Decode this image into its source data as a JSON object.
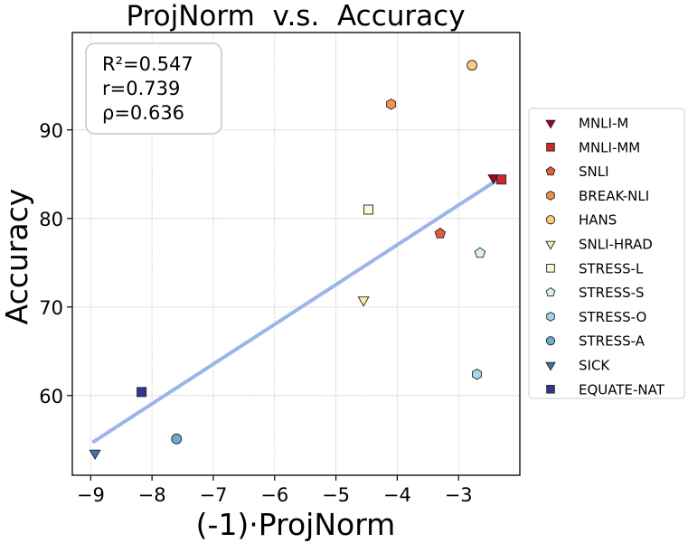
{
  "chart_data": {
    "type": "scatter",
    "title": "ProjNorm  v.s.  Accuracy",
    "xlabel": "(-1)·ProjNorm",
    "ylabel": "Accuracy",
    "xlim": [
      -9.3,
      -2.0
    ],
    "ylim": [
      51.0,
      101.0
    ],
    "xticks": [
      -9,
      -8,
      -7,
      -6,
      -5,
      -4,
      -3
    ],
    "yticks": [
      60,
      70,
      80,
      90
    ],
    "xtick_labels": [
      "−9",
      "−8",
      "−7",
      "−6",
      "−5",
      "−4",
      "−3"
    ],
    "ytick_labels": [
      "60",
      "70",
      "80",
      "90"
    ],
    "grid": true,
    "legend_position": "right outside",
    "stats": [
      "R²=0.547",
      "r=0.739",
      "ρ=0.636"
    ],
    "fit_line": {
      "x": [
        -8.95,
        -2.4
      ],
      "y": [
        54.8,
        84.2
      ],
      "color": "#9db4ea"
    },
    "series": [
      {
        "name": "MNLI-M",
        "marker": "triangle-down",
        "color": "#99081e",
        "x": [
          -2.43
        ],
        "y": [
          84.6
        ]
      },
      {
        "name": "MNLI-MM",
        "marker": "square",
        "color": "#d0282c",
        "x": [
          -2.3
        ],
        "y": [
          84.4
        ]
      },
      {
        "name": "SNLI",
        "marker": "pentagon",
        "color": "#ea5838",
        "x": [
          -3.3
        ],
        "y": [
          78.3
        ]
      },
      {
        "name": "BREAK-NLI",
        "marker": "hexagon",
        "color": "#f5904d",
        "x": [
          -4.1
        ],
        "y": [
          92.9
        ]
      },
      {
        "name": "HANS",
        "marker": "circle",
        "color": "#fdc979",
        "x": [
          -2.78
        ],
        "y": [
          97.3
        ]
      },
      {
        "name": "SNLI-HRAD",
        "marker": "triangle-down",
        "color": "#fdf0a2",
        "x": [
          -4.55
        ],
        "y": [
          70.8
        ]
      },
      {
        "name": "STRESS-L",
        "marker": "square",
        "color": "#f9fbd4",
        "x": [
          -4.47
        ],
        "y": [
          81.0
        ]
      },
      {
        "name": "STRESS-S",
        "marker": "pentagon",
        "color": "#daf0f5",
        "x": [
          -2.65
        ],
        "y": [
          76.1
        ]
      },
      {
        "name": "STRESS-O",
        "marker": "hexagon",
        "color": "#a6d7e8",
        "x": [
          -2.7
        ],
        "y": [
          62.4
        ]
      },
      {
        "name": "STRESS-A",
        "marker": "circle",
        "color": "#6aacd1",
        "x": [
          -7.6
        ],
        "y": [
          55.1
        ]
      },
      {
        "name": "SICK",
        "marker": "triangle-down",
        "color": "#3d72b0",
        "x": [
          -8.93
        ],
        "y": [
          53.5
        ]
      },
      {
        "name": "EQUATE-NAT",
        "marker": "square",
        "color": "#323795",
        "x": [
          -8.17
        ],
        "y": [
          60.4
        ]
      }
    ]
  }
}
